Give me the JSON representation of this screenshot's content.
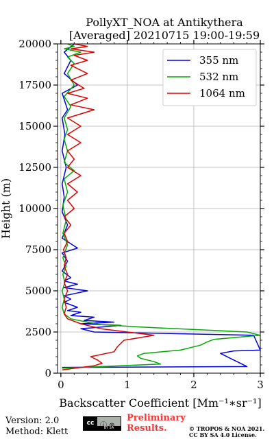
{
  "chart_data": {
    "type": "line",
    "title": [
      "PollyXT_NOA at Antikythera",
      "[Averaged] 20210715 19:00-19:59"
    ],
    "xlabel": "Backscatter Coefficient [Mm⁻¹∗sr⁻¹]",
    "ylabel": "Height (m)",
    "xlim": [
      -0.05,
      3
    ],
    "ylim": [
      0,
      20000
    ],
    "xticks": [
      0,
      1,
      2,
      3
    ],
    "yticks": [
      0,
      2500,
      5000,
      7500,
      10000,
      12500,
      15000,
      17500,
      20000
    ],
    "grid": true,
    "legend_position": "top-right",
    "series": [
      {
        "name": "355 nm",
        "color": "#0000dd",
        "points": [
          [
            0.02,
            350
          ],
          [
            2.8,
            400
          ],
          [
            2.7,
            600
          ],
          [
            2.55,
            900
          ],
          [
            2.45,
            1100
          ],
          [
            2.4,
            1200
          ],
          [
            2.6,
            1350
          ],
          [
            3.0,
            1400
          ],
          [
            2.9,
            2300
          ],
          [
            0.5,
            2500
          ],
          [
            0.3,
            2700
          ],
          [
            0.9,
            2900
          ],
          [
            0.3,
            3000
          ],
          [
            0.8,
            3100
          ],
          [
            0.35,
            3200
          ],
          [
            0.5,
            3400
          ],
          [
            0.15,
            3500
          ],
          [
            0.3,
            3700
          ],
          [
            0.1,
            3800
          ],
          [
            0.25,
            4000
          ],
          [
            0.05,
            4300
          ],
          [
            0.15,
            4500
          ],
          [
            0.05,
            4700
          ],
          [
            0.4,
            5000
          ],
          [
            0.05,
            5200
          ],
          [
            0.25,
            5400
          ],
          [
            0.05,
            5600
          ],
          [
            0.15,
            5800
          ],
          [
            0.02,
            6200
          ],
          [
            0.1,
            6800
          ],
          [
            0.02,
            7300
          ],
          [
            0.25,
            7600
          ],
          [
            0.02,
            8200
          ],
          [
            0.1,
            9000
          ],
          [
            0.02,
            9800
          ],
          [
            0.05,
            10700
          ],
          [
            0.02,
            11500
          ],
          [
            0.08,
            12500
          ],
          [
            0.02,
            13500
          ],
          [
            0.06,
            14500
          ],
          [
            0.02,
            15500
          ],
          [
            0.1,
            16000
          ],
          [
            0.02,
            17000
          ],
          [
            0.25,
            17500
          ],
          [
            0.05,
            18200
          ],
          [
            0.15,
            19000
          ],
          [
            0.05,
            19500
          ],
          [
            0.2,
            20000
          ]
        ]
      },
      {
        "name": "532 nm",
        "color": "#00aa00",
        "points": [
          [
            0.02,
            300
          ],
          [
            1.5,
            550
          ],
          [
            1.4,
            700
          ],
          [
            1.2,
            900
          ],
          [
            1.15,
            1050
          ],
          [
            1.25,
            1200
          ],
          [
            1.8,
            1400
          ],
          [
            2.1,
            1700
          ],
          [
            2.2,
            1900
          ],
          [
            2.3,
            2050
          ],
          [
            3.0,
            2300
          ],
          [
            2.8,
            2500
          ],
          [
            1.2,
            2800
          ],
          [
            0.6,
            2950
          ],
          [
            0.4,
            3100
          ],
          [
            0.15,
            3300
          ],
          [
            0.05,
            3600
          ],
          [
            0.02,
            4000
          ],
          [
            0.05,
            4500
          ],
          [
            0.02,
            5000
          ],
          [
            0.06,
            5500
          ],
          [
            0.03,
            6000
          ],
          [
            0.08,
            6500
          ],
          [
            0.03,
            7000
          ],
          [
            0.1,
            7800
          ],
          [
            0.03,
            8500
          ],
          [
            0.08,
            9300
          ],
          [
            0.03,
            10200
          ],
          [
            0.1,
            11000
          ],
          [
            0.05,
            11800
          ],
          [
            0.2,
            12300
          ],
          [
            0.05,
            12800
          ],
          [
            0.1,
            13500
          ],
          [
            0.05,
            14200
          ],
          [
            0.1,
            14800
          ],
          [
            0.05,
            15500
          ],
          [
            0.15,
            16200
          ],
          [
            0.05,
            16800
          ],
          [
            0.2,
            17500
          ],
          [
            0.1,
            18200
          ],
          [
            0.2,
            18800
          ],
          [
            0.1,
            19200
          ],
          [
            0.3,
            19500
          ],
          [
            0.05,
            19700
          ],
          [
            0.2,
            19850
          ],
          [
            0.1,
            20000
          ]
        ]
      },
      {
        "name": "1064 nm",
        "color": "#dd0000",
        "points": [
          [
            0.02,
            200
          ],
          [
            0.5,
            450
          ],
          [
            0.62,
            600
          ],
          [
            0.55,
            800
          ],
          [
            0.45,
            1000
          ],
          [
            0.8,
            1300
          ],
          [
            0.85,
            1600
          ],
          [
            0.95,
            2000
          ],
          [
            1.1,
            2100
          ],
          [
            1.4,
            2300
          ],
          [
            0.6,
            2700
          ],
          [
            0.3,
            3000
          ],
          [
            0.1,
            3300
          ],
          [
            0.05,
            3600
          ],
          [
            0.08,
            4000
          ],
          [
            0.05,
            4500
          ],
          [
            0.1,
            5000
          ],
          [
            0.05,
            5500
          ],
          [
            0.1,
            6000
          ],
          [
            0.05,
            6500
          ],
          [
            0.08,
            7000
          ],
          [
            0.04,
            7500
          ],
          [
            0.1,
            8000
          ],
          [
            0.05,
            8500
          ],
          [
            0.15,
            9000
          ],
          [
            0.05,
            9500
          ],
          [
            0.2,
            10000
          ],
          [
            0.1,
            10500
          ],
          [
            0.25,
            11000
          ],
          [
            0.1,
            11500
          ],
          [
            0.3,
            12000
          ],
          [
            0.1,
            12500
          ],
          [
            0.2,
            13000
          ],
          [
            0.1,
            13500
          ],
          [
            0.3,
            14000
          ],
          [
            0.1,
            14500
          ],
          [
            0.3,
            15000
          ],
          [
            0.1,
            15500
          ],
          [
            0.5,
            16000
          ],
          [
            0.15,
            16300
          ],
          [
            0.4,
            16700
          ],
          [
            0.1,
            17000
          ],
          [
            0.35,
            17300
          ],
          [
            0.15,
            17800
          ],
          [
            0.4,
            18200
          ],
          [
            0.15,
            18700
          ],
          [
            0.4,
            19000
          ],
          [
            0.2,
            19300
          ],
          [
            0.5,
            19500
          ],
          [
            0.15,
            19700
          ],
          [
            0.4,
            19850
          ],
          [
            0.2,
            20000
          ]
        ]
      }
    ]
  },
  "footer": {
    "version": "Version: 2.0",
    "method": "Method: Klett",
    "license_badge_cc": "cc",
    "license_badge_icons": "ⓘ ⊚",
    "license_badge_bar": "BY  SA",
    "preliminary_line1": "Preliminary",
    "preliminary_line2": "Results.",
    "copyright_line1": "© TROPOS & NOA 2021.",
    "copyright_line2": "CC BY SA 4.0 License."
  }
}
